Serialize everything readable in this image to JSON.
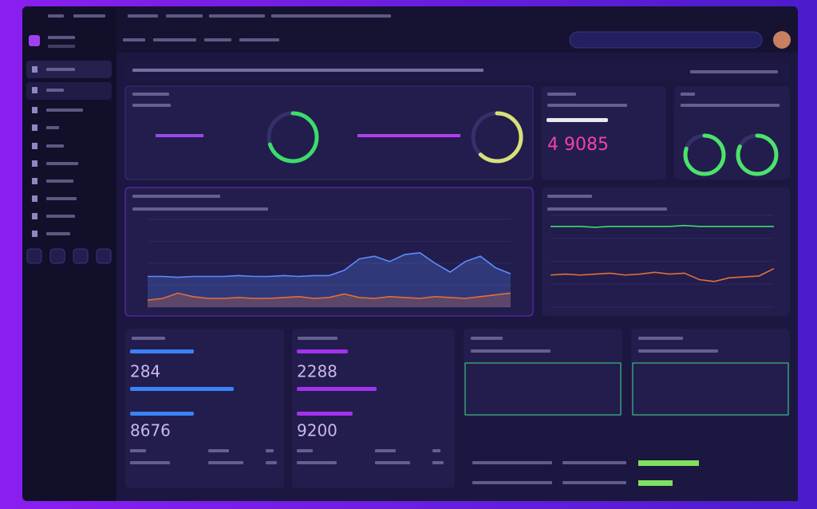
{
  "stats": {
    "headline": "4 9085"
  },
  "cards": [
    {
      "value": "284",
      "value2": "8676",
      "color": "#3b82f6",
      "bars": [
        40,
        65,
        40
      ]
    },
    {
      "value": "2288",
      "value2": "9200",
      "color": "#a232f0",
      "bars": [
        32,
        50,
        35
      ]
    }
  ],
  "gauges": [
    {
      "value": 70,
      "color": "#3ddc6b"
    },
    {
      "value": 62,
      "color": "#d8e07a"
    },
    {
      "value": 80,
      "color": "#4be36b"
    },
    {
      "value": 82,
      "color": "#4be36b"
    }
  ],
  "charts": [
    {
      "type": "line",
      "ylim": [
        0,
        100
      ],
      "series": [
        {
          "color": "#5b8cff",
          "values": [
            35,
            35,
            34,
            35,
            35,
            35,
            36,
            35,
            35,
            36,
            35,
            36,
            36,
            42,
            55,
            58,
            52,
            60,
            62,
            50,
            40,
            52,
            58,
            45,
            38
          ]
        },
        {
          "color": "#e0703a",
          "values": [
            8,
            10,
            16,
            12,
            10,
            10,
            11,
            10,
            10,
            11,
            12,
            10,
            11,
            15,
            11,
            10,
            12,
            11,
            10,
            12,
            11,
            10,
            12,
            14,
            16
          ]
        }
      ]
    },
    {
      "type": "line",
      "ylim": [
        0,
        100
      ],
      "series": [
        {
          "color": "#3ddc6b",
          "values": [
            88,
            88,
            88,
            87,
            88,
            88,
            88,
            88,
            88,
            89,
            88,
            88,
            88,
            88,
            88,
            88
          ]
        },
        {
          "color": "#e0703a",
          "values": [
            35,
            36,
            35,
            36,
            37,
            35,
            36,
            38,
            36,
            37,
            30,
            28,
            32,
            33,
            34,
            42
          ]
        }
      ]
    }
  ],
  "list_bars": [
    76,
    43
  ]
}
